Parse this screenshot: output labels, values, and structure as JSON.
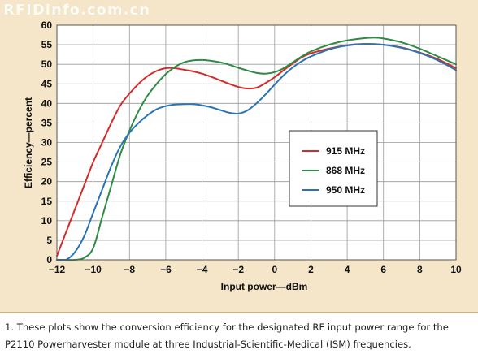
{
  "watermark": "RFIDinfo.com.cn",
  "caption": "1. These plots show the conversion efficiency for the designated RF input power range for the P2110 Powerharvester module at three Industrial-Scientific-Medical (ISM) frequencies.",
  "chart_data": {
    "type": "line",
    "title": "",
    "xlabel": "Input power—dBm",
    "ylabel": "Efficiency—percent",
    "xlim": [
      -12,
      10
    ],
    "ylim": [
      0,
      60
    ],
    "xticks": [
      -12,
      -10,
      -8,
      -6,
      -4,
      -2,
      0,
      2,
      4,
      6,
      8,
      10
    ],
    "yticks": [
      0,
      5,
      10,
      15,
      20,
      25,
      30,
      35,
      40,
      45,
      50,
      55,
      60
    ],
    "grid": true,
    "legend_position": "center-right",
    "series": [
      {
        "name": "915 MHz",
        "color": "#d42b2b",
        "x": [
          -12,
          -11.5,
          -11,
          -10.5,
          -10,
          -9.5,
          -9,
          -8.5,
          -8,
          -7.5,
          -7,
          -6.5,
          -6,
          -5.5,
          -5,
          -4.5,
          -4,
          -3.5,
          -3,
          -2.5,
          -2,
          -1.5,
          -1,
          -0.5,
          0,
          0.5,
          1,
          1.5,
          2,
          3,
          4,
          5,
          6,
          7,
          8,
          9,
          10
        ],
        "values": [
          1,
          7,
          13,
          19,
          25,
          30,
          35,
          39.5,
          42.5,
          45,
          47,
          48.3,
          49,
          49,
          48.6,
          48.2,
          47.6,
          46.8,
          45.9,
          45,
          44.2,
          43.8,
          44,
          45.2,
          46.7,
          48.5,
          50.2,
          51.8,
          52.8,
          54,
          54.9,
          55.2,
          55,
          54.3,
          53,
          51.3,
          49
        ]
      },
      {
        "name": "868 MHz",
        "color": "#2e8b45",
        "x": [
          -12,
          -11.5,
          -11,
          -10.5,
          -10,
          -9.5,
          -9,
          -8.5,
          -8,
          -7.5,
          -7,
          -6.5,
          -6,
          -5.5,
          -5,
          -4.5,
          -4,
          -3.5,
          -3,
          -2.5,
          -2,
          -1.5,
          -1,
          -0.5,
          0,
          0.5,
          1,
          1.5,
          2,
          3,
          4,
          5,
          5.5,
          6,
          7,
          8,
          9,
          10
        ],
        "values": [
          0,
          0,
          0,
          0.5,
          3,
          11,
          19,
          27,
          33,
          38,
          42,
          45,
          47.5,
          49.3,
          50.5,
          51,
          51.1,
          50.9,
          50.5,
          49.9,
          49.1,
          48.4,
          47.8,
          47.6,
          48,
          49,
          50.5,
          52,
          53.3,
          55,
          56.1,
          56.7,
          56.8,
          56.6,
          55.6,
          54,
          52,
          50
        ]
      },
      {
        "name": "950 MHz",
        "color": "#2a74b5",
        "x": [
          -12,
          -11.5,
          -11,
          -10.5,
          -10,
          -9.5,
          -9,
          -8.5,
          -8,
          -7.5,
          -7,
          -6.5,
          -6,
          -5.5,
          -5,
          -4.5,
          -4,
          -3.5,
          -3,
          -2.5,
          -2,
          -1.5,
          -1,
          -0.5,
          0,
          0.5,
          1,
          1.5,
          2,
          3,
          4,
          5,
          6,
          7,
          8,
          9,
          10
        ],
        "values": [
          0,
          0,
          2,
          6,
          12,
          18,
          24,
          29,
          32.5,
          35,
          37,
          38.5,
          39.3,
          39.7,
          39.8,
          39.8,
          39.5,
          39,
          38.3,
          37.6,
          37.4,
          38.2,
          40,
          42.3,
          44.8,
          47.2,
          49.2,
          50.8,
          52,
          53.8,
          54.8,
          55.2,
          55,
          54.2,
          52.9,
          51,
          48.5
        ]
      }
    ]
  }
}
